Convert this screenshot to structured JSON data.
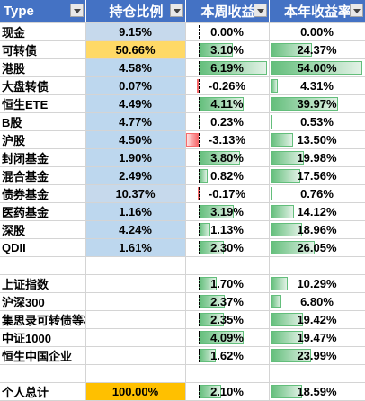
{
  "header": {
    "col0": "Type",
    "col1": "持仓比例",
    "col2": "本周收益",
    "col3": "本年收益率"
  },
  "scale": {
    "week_max": 6.19,
    "year_max": 54.0,
    "week_neg_max": 3.13
  },
  "rows": [
    {
      "name": "现金",
      "holding": "9.15%",
      "week": "0.00%",
      "week_v": 0.0,
      "year": "0.00%",
      "year_v": 0.0
    },
    {
      "name": "可转债",
      "holding": "50.66%",
      "week": "3.10%",
      "week_v": 3.1,
      "year": "24.37%",
      "year_v": 24.37
    },
    {
      "name": "港股",
      "holding": "4.58%",
      "week": "6.19%",
      "week_v": 6.19,
      "year": "54.00%",
      "year_v": 54.0
    },
    {
      "name": "大盘转债",
      "holding": "0.07%",
      "week": "-0.26%",
      "week_v": -0.26,
      "year": "4.31%",
      "year_v": 4.31
    },
    {
      "name": "恒生ETE",
      "holding": "4.49%",
      "week": "4.11%",
      "week_v": 4.11,
      "year": "39.97%",
      "year_v": 39.97
    },
    {
      "name": "B股",
      "holding": "4.77%",
      "week": "0.23%",
      "week_v": 0.23,
      "year": "0.53%",
      "year_v": 0.53
    },
    {
      "name": "沪股",
      "holding": "4.50%",
      "week": "-3.13%",
      "week_v": -3.13,
      "year": "13.50%",
      "year_v": 13.5
    },
    {
      "name": "封闭基金",
      "holding": "1.90%",
      "week": "3.80%",
      "week_v": 3.8,
      "year": "19.98%",
      "year_v": 19.98
    },
    {
      "name": "混合基金",
      "holding": "2.49%",
      "week": "0.82%",
      "week_v": 0.82,
      "year": "17.56%",
      "year_v": 17.56
    },
    {
      "name": "债券基金",
      "holding": "10.37%",
      "week": "-0.17%",
      "week_v": -0.17,
      "year": "0.76%",
      "year_v": 0.76
    },
    {
      "name": "医药基金",
      "holding": "1.16%",
      "week": "3.19%",
      "week_v": 3.19,
      "year": "14.12%",
      "year_v": 14.12
    },
    {
      "name": "深股",
      "holding": "4.24%",
      "week": "1.13%",
      "week_v": 1.13,
      "year": "18.96%",
      "year_v": 18.96
    },
    {
      "name": "QDII",
      "holding": "1.61%",
      "week": "2.30%",
      "week_v": 2.3,
      "year": "26.05%",
      "year_v": 26.05
    }
  ],
  "indices": [
    {
      "name": "上证指数",
      "week": "1.70%",
      "week_v": 1.7,
      "year": "10.29%",
      "year_v": 10.29
    },
    {
      "name": "沪深300",
      "week": "2.37%",
      "week_v": 2.37,
      "year": "6.80%",
      "year_v": 6.8
    },
    {
      "name": "集思录可转债等权",
      "week": "2.35%",
      "week_v": 2.35,
      "year": "19.42%",
      "year_v": 19.42
    },
    {
      "name": "中证1000",
      "week": "4.09%",
      "week_v": 4.09,
      "year": "19.47%",
      "year_v": 19.47
    },
    {
      "name": "恒生中国企业",
      "week": "1.62%",
      "week_v": 1.62,
      "year": "23.99%",
      "year_v": 23.99
    }
  ],
  "total": {
    "name": "个人总计",
    "holding": "100.00%",
    "week": "2.10%",
    "week_v": 2.1,
    "year": "18.59%",
    "year_v": 18.59
  }
}
